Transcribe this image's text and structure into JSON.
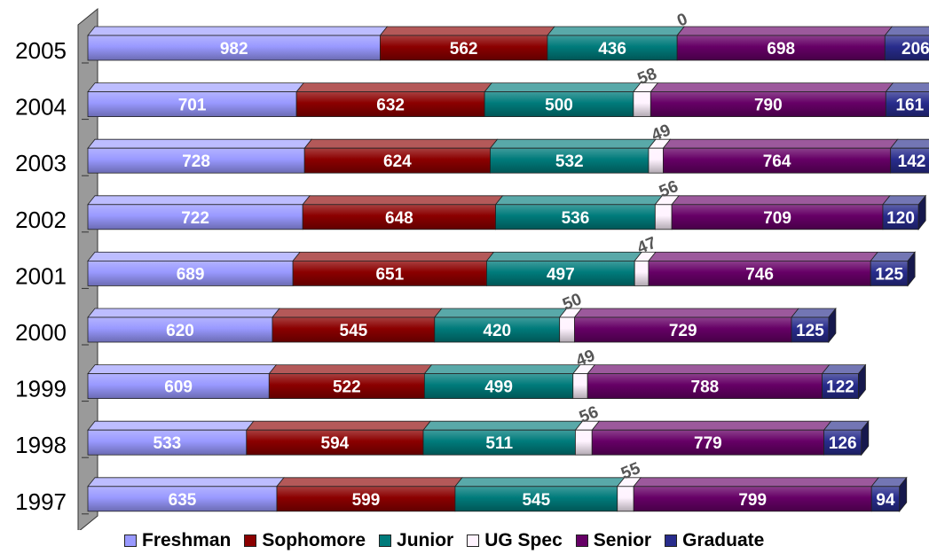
{
  "chart_data": {
    "type": "bar",
    "orientation": "horizontal",
    "stacked": true,
    "three_d": true,
    "categories": [
      "2005",
      "2004",
      "2003",
      "2002",
      "2001",
      "2000",
      "1999",
      "1998",
      "1997"
    ],
    "series": [
      {
        "name": "Freshman",
        "color": "#9999ff",
        "values": [
          982,
          701,
          728,
          722,
          689,
          620,
          609,
          533,
          635
        ]
      },
      {
        "name": "Sophomore",
        "color": "#8b0000",
        "values": [
          562,
          632,
          624,
          648,
          651,
          545,
          522,
          594,
          599
        ]
      },
      {
        "name": "Junior",
        "color": "#007b7b",
        "values": [
          436,
          500,
          532,
          536,
          497,
          420,
          499,
          511,
          545
        ]
      },
      {
        "name": "UG Spec",
        "color": "#fff3ff",
        "values": [
          0,
          58,
          49,
          56,
          47,
          50,
          49,
          56,
          55
        ]
      },
      {
        "name": "Senior",
        "color": "#660066",
        "values": [
          698,
          790,
          764,
          709,
          746,
          729,
          788,
          779,
          799
        ]
      },
      {
        "name": "Graduate",
        "color": "#282c8c",
        "values": [
          206,
          161,
          142,
          120,
          125,
          125,
          122,
          126,
          94
        ]
      }
    ],
    "legend_position": "bottom",
    "xlim": [
      0,
      2850
    ],
    "grid": false
  }
}
